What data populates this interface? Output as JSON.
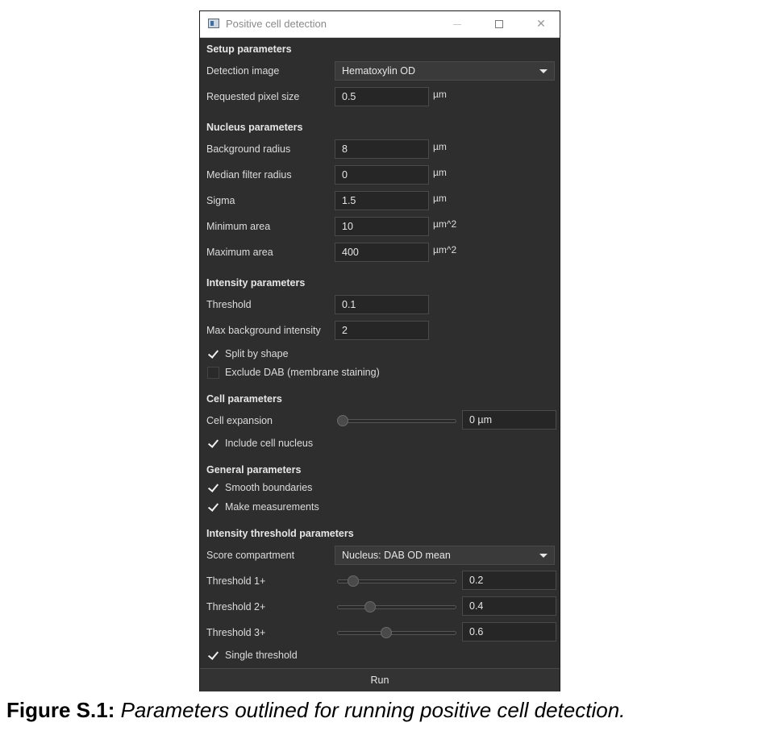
{
  "window": {
    "title": "Positive cell detection",
    "controls": {
      "minimize_icon": "minimize-icon",
      "maximize_icon": "maximize-icon",
      "close_icon": "close-icon"
    }
  },
  "setup": {
    "heading": "Setup parameters",
    "detection_image_label": "Detection image",
    "detection_image_value": "Hematoxylin OD",
    "pixel_size_label": "Requested pixel size",
    "pixel_size_value": "0.5",
    "pixel_size_unit": "µm"
  },
  "nucleus": {
    "heading": "Nucleus parameters",
    "background_radius_label": "Background radius",
    "background_radius_value": "8",
    "background_radius_unit": "µm",
    "median_label": "Median filter radius",
    "median_value": "0",
    "median_unit": "µm",
    "sigma_label": "Sigma",
    "sigma_value": "1.5",
    "sigma_unit": "µm",
    "min_area_label": "Minimum area",
    "min_area_value": "10",
    "min_area_unit": "µm^2",
    "max_area_label": "Maximum area",
    "max_area_value": "400",
    "max_area_unit": "µm^2"
  },
  "intensity": {
    "heading": "Intensity parameters",
    "threshold_label": "Threshold",
    "threshold_value": "0.1",
    "max_bg_label": "Max background intensity",
    "max_bg_value": "2",
    "split_label": "Split by shape",
    "split_checked": true,
    "exclude_label": "Exclude DAB (membrane staining)",
    "exclude_checked": false
  },
  "cell": {
    "heading": "Cell parameters",
    "expansion_label": "Cell expansion",
    "expansion_value": "0 µm",
    "expansion_level": 0,
    "include_label": "Include cell nucleus",
    "include_checked": true
  },
  "general": {
    "heading": "General parameters",
    "smooth_label": "Smooth boundaries",
    "smooth_checked": true,
    "measure_label": "Make measurements",
    "measure_checked": true
  },
  "threshold_params": {
    "heading": "Intensity threshold parameters",
    "compartment_label": "Score compartment",
    "compartment_value": "Nucleus: DAB OD mean",
    "t1_label": "Threshold 1+",
    "t1_value": "0.2",
    "t2_label": "Threshold 2+",
    "t2_value": "0.4",
    "t3_label": "Threshold 3+",
    "t3_value": "0.6",
    "single_label": "Single threshold",
    "single_checked": true
  },
  "run_label": "Run",
  "caption": {
    "bold": "Figure S.1:",
    "italic": "Parameters outlined for running positive cell detection."
  }
}
